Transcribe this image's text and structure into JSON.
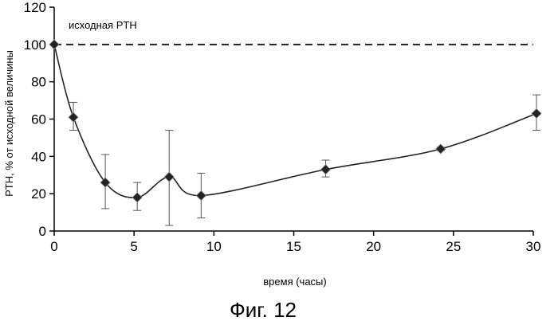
{
  "chart_data": {
    "type": "line",
    "title": "",
    "xlabel": "время (часы)",
    "ylabel": "PTH, % от исходной величины",
    "xlim": [
      0,
      30
    ],
    "ylim": [
      0,
      120
    ],
    "x_ticks": [
      0,
      5,
      10,
      15,
      20,
      25,
      30
    ],
    "y_ticks": [
      0,
      20,
      40,
      60,
      80,
      100,
      120
    ],
    "grid": false,
    "legend": "none",
    "series": [
      {
        "x": [
          0,
          1.2,
          3.2,
          5.2,
          7.2,
          9.2,
          17,
          24.2,
          30.2
        ],
        "values": [
          100,
          61,
          26,
          18,
          29,
          19,
          33,
          44,
          63
        ],
        "error_low": [
          0,
          7,
          14,
          7,
          26,
          12,
          4,
          1,
          9
        ],
        "error_high": [
          0,
          8,
          15,
          8,
          25,
          12,
          5,
          1,
          10
        ],
        "color": "#222222",
        "marker": "diamond"
      }
    ],
    "baseline": {
      "label": "исходная PTH",
      "value": 100,
      "style": "dashed",
      "color": "#222222"
    },
    "caption": "Фиг. 12"
  }
}
